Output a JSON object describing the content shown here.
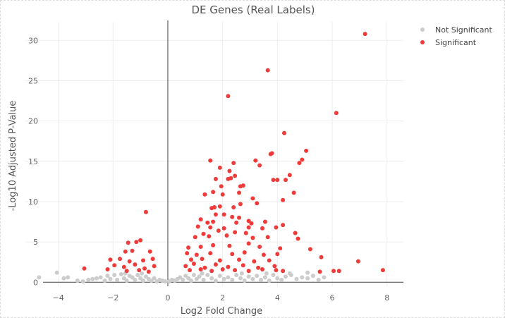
{
  "chart_data": {
    "type": "scatter",
    "title": "DE Genes (Real Labels)",
    "xlabel": "Log2 Fold Change",
    "ylabel": "-Log10 Adjusted P-Value",
    "xlim": [
      -5.2,
      8.6
    ],
    "ylim": [
      -0.5,
      32.3
    ],
    "xticks": [
      -4,
      -2,
      0,
      2,
      4,
      6,
      8
    ],
    "yticks": [
      0,
      5,
      10,
      15,
      20,
      25,
      30
    ],
    "grid": true,
    "legend_position": "top-right",
    "series": [
      {
        "name": "Not Significant",
        "color": "#cccccc",
        "points": [
          [
            -4.7,
            0.6
          ],
          [
            -4.05,
            1.2
          ],
          [
            -3.8,
            0.5
          ],
          [
            -3.65,
            0.6
          ],
          [
            -3.3,
            0.2
          ],
          [
            -3.1,
            0.1
          ],
          [
            -2.9,
            0.3
          ],
          [
            -2.75,
            0.4
          ],
          [
            -2.6,
            0.5
          ],
          [
            -2.45,
            0.6
          ],
          [
            -2.3,
            0.2
          ],
          [
            -2.2,
            0.8
          ],
          [
            -2.1,
            0.4
          ],
          [
            -1.95,
            0.9
          ],
          [
            -1.85,
            0.3
          ],
          [
            -1.7,
            1.0
          ],
          [
            -1.6,
            0.5
          ],
          [
            -1.5,
            0.2
          ],
          [
            -1.4,
            0.8
          ],
          [
            -1.3,
            0.6
          ],
          [
            -1.2,
            0.3
          ],
          [
            -1.1,
            0.9
          ],
          [
            -1.0,
            0.5
          ],
          [
            -0.9,
            0.2
          ],
          [
            -0.8,
            0.7
          ],
          [
            -0.7,
            0.4
          ],
          [
            -0.6,
            0.2
          ],
          [
            -0.5,
            0.5
          ],
          [
            -0.4,
            0.1
          ],
          [
            -0.3,
            0.3
          ],
          [
            -0.2,
            0.2
          ],
          [
            -0.1,
            0.1
          ],
          [
            0.05,
            0.1
          ],
          [
            0.15,
            0.3
          ],
          [
            0.25,
            0.2
          ],
          [
            0.35,
            0.4
          ],
          [
            0.45,
            0.6
          ],
          [
            0.55,
            0.3
          ],
          [
            0.65,
            0.8
          ],
          [
            0.75,
            0.5
          ],
          [
            0.85,
            0.2
          ],
          [
            0.95,
            0.9
          ],
          [
            1.05,
            0.4
          ],
          [
            1.15,
            0.7
          ],
          [
            1.3,
            0.3
          ],
          [
            1.45,
            0.9
          ],
          [
            1.6,
            0.5
          ],
          [
            1.75,
            0.2
          ],
          [
            1.9,
            0.8
          ],
          [
            2.05,
            0.4
          ],
          [
            2.2,
            0.6
          ],
          [
            2.35,
            0.3
          ],
          [
            2.5,
            0.9
          ],
          [
            2.65,
            0.5
          ],
          [
            2.8,
            0.2
          ],
          [
            2.95,
            0.7
          ],
          [
            3.1,
            0.4
          ],
          [
            3.25,
            0.8
          ],
          [
            3.4,
            0.3
          ],
          [
            3.55,
            0.6
          ],
          [
            3.7,
            0.2
          ],
          [
            3.85,
            0.9
          ],
          [
            4.0,
            0.5
          ],
          [
            4.15,
            0.3
          ],
          [
            4.3,
            0.7
          ],
          [
            4.5,
            0.9
          ],
          [
            4.7,
            0.4
          ],
          [
            4.9,
            0.6
          ],
          [
            5.1,
            0.5
          ],
          [
            5.3,
            0.8
          ],
          [
            5.5,
            0.3
          ],
          [
            5.7,
            0.6
          ],
          [
            -1.55,
            1.1
          ],
          [
            -0.95,
            1.1
          ],
          [
            1.25,
            1.1
          ],
          [
            2.7,
            1.1
          ],
          [
            3.6,
            1.1
          ],
          [
            4.45,
            1.1
          ],
          [
            5.1,
            1.2
          ]
        ]
      },
      {
        "name": "Significant",
        "color": "#f03b3b",
        "points": [
          [
            7.2,
            30.8
          ],
          [
            3.65,
            26.3
          ],
          [
            2.2,
            23.1
          ],
          [
            6.15,
            21.0
          ],
          [
            4.25,
            18.5
          ],
          [
            5.05,
            16.3
          ],
          [
            3.8,
            16.0
          ],
          [
            3.75,
            15.9
          ],
          [
            4.9,
            15.2
          ],
          [
            3.2,
            15.1
          ],
          [
            4.8,
            14.8
          ],
          [
            1.55,
            15.1
          ],
          [
            2.4,
            14.8
          ],
          [
            3.35,
            14.5
          ],
          [
            1.9,
            14.2
          ],
          [
            2.25,
            13.8
          ],
          [
            2.45,
            13.2
          ],
          [
            4.45,
            13.3
          ],
          [
            1.75,
            12.8
          ],
          [
            2.2,
            12.8
          ],
          [
            2.3,
            12.9
          ],
          [
            3.85,
            12.7
          ],
          [
            4.0,
            12.7
          ],
          [
            4.3,
            12.7
          ],
          [
            1.95,
            11.9
          ],
          [
            2.75,
            12.0
          ],
          [
            2.65,
            11.9
          ],
          [
            1.65,
            11.2
          ],
          [
            4.6,
            11.1
          ],
          [
            1.35,
            10.9
          ],
          [
            2.6,
            11.1
          ],
          [
            2.0,
            10.9
          ],
          [
            4.2,
            10.2
          ],
          [
            3.1,
            10.4
          ],
          [
            3.25,
            9.8
          ],
          [
            2.65,
            9.7
          ],
          [
            1.9,
            9.4
          ],
          [
            1.7,
            9.3
          ],
          [
            1.6,
            9.2
          ],
          [
            2.4,
            9.3
          ],
          [
            1.75,
            8.4
          ],
          [
            2.05,
            8.4
          ],
          [
            2.35,
            8.1
          ],
          [
            2.6,
            8.0
          ],
          [
            1.2,
            7.8
          ],
          [
            2.95,
            7.6
          ],
          [
            3.55,
            7.5
          ],
          [
            1.45,
            7.4
          ],
          [
            1.65,
            7.5
          ],
          [
            2.5,
            7.4
          ],
          [
            3.05,
            7.3
          ],
          [
            -0.8,
            8.7
          ],
          [
            1.1,
            6.9
          ],
          [
            1.55,
            6.8
          ],
          [
            2.05,
            6.7
          ],
          [
            2.95,
            6.8
          ],
          [
            3.45,
            6.7
          ],
          [
            3.95,
            6.8
          ],
          [
            4.2,
            7.1
          ],
          [
            1.85,
            6.4
          ],
          [
            1.3,
            6.0
          ],
          [
            2.45,
            6.2
          ],
          [
            2.85,
            6.1
          ],
          [
            4.65,
            6.1
          ],
          [
            1.0,
            5.6
          ],
          [
            1.5,
            5.7
          ],
          [
            2.15,
            5.8
          ],
          [
            3.1,
            5.5
          ],
          [
            3.65,
            5.6
          ],
          [
            4.75,
            5.4
          ],
          [
            -1.45,
            4.9
          ],
          [
            -1.15,
            5.0
          ],
          [
            -1.0,
            5.2
          ],
          [
            0.75,
            4.3
          ],
          [
            1.2,
            4.4
          ],
          [
            1.65,
            4.6
          ],
          [
            2.25,
            4.5
          ],
          [
            2.95,
            4.8
          ],
          [
            3.35,
            4.4
          ],
          [
            4.1,
            4.2
          ],
          [
            5.2,
            4.1
          ],
          [
            -1.55,
            3.8
          ],
          [
            -1.3,
            3.9
          ],
          [
            -0.65,
            3.8
          ],
          [
            0.7,
            3.6
          ],
          [
            1.05,
            3.4
          ],
          [
            1.55,
            3.6
          ],
          [
            2.35,
            3.5
          ],
          [
            2.8,
            3.7
          ],
          [
            3.5,
            3.4
          ],
          [
            4.0,
            3.5
          ],
          [
            5.6,
            3.1
          ],
          [
            6.95,
            2.6
          ],
          [
            -2.1,
            2.8
          ],
          [
            -1.75,
            2.9
          ],
          [
            -1.4,
            2.6
          ],
          [
            -0.9,
            2.7
          ],
          [
            -0.55,
            2.9
          ],
          [
            0.85,
            2.8
          ],
          [
            1.25,
            2.9
          ],
          [
            1.9,
            2.7
          ],
          [
            2.6,
            2.8
          ],
          [
            3.15,
            2.6
          ],
          [
            3.7,
            2.7
          ],
          [
            -2.2,
            1.6
          ],
          [
            -1.95,
            2.1
          ],
          [
            -1.6,
            1.9
          ],
          [
            -1.2,
            2.2
          ],
          [
            -0.85,
            1.7
          ],
          [
            -0.5,
            2.0
          ],
          [
            0.65,
            2.0
          ],
          [
            0.95,
            2.3
          ],
          [
            1.35,
            1.8
          ],
          [
            1.75,
            2.2
          ],
          [
            2.2,
            1.9
          ],
          [
            2.75,
            2.1
          ],
          [
            3.3,
            1.8
          ],
          [
            3.9,
            2.0
          ],
          [
            -3.05,
            1.7
          ],
          [
            -1.5,
            1.4
          ],
          [
            -1.05,
            1.5
          ],
          [
            -0.7,
            1.3
          ],
          [
            0.8,
            1.5
          ],
          [
            1.2,
            1.6
          ],
          [
            1.6,
            1.4
          ],
          [
            2.0,
            1.6
          ],
          [
            2.45,
            1.5
          ],
          [
            2.95,
            1.4
          ],
          [
            3.45,
            1.6
          ],
          [
            4.2,
            1.4
          ],
          [
            5.55,
            1.3
          ],
          [
            6.05,
            1.4
          ],
          [
            6.25,
            1.4
          ],
          [
            7.85,
            1.5
          ],
          [
            3.95,
            1.5
          ]
        ]
      }
    ]
  }
}
